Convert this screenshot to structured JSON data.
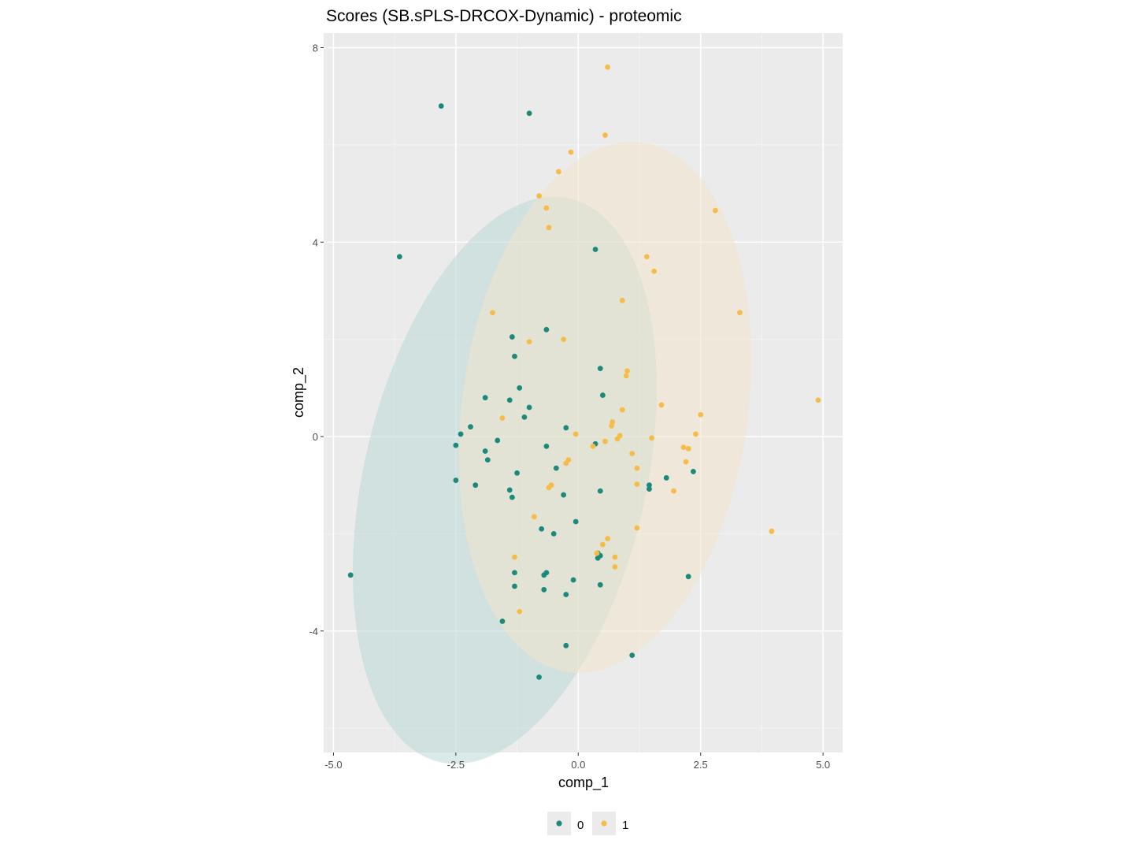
{
  "chart_data": {
    "type": "scatter",
    "title": "Scores (SB.sPLS-DRCOX-Dynamic) - proteomic",
    "xlabel": "comp_1",
    "ylabel": "comp_2",
    "xlim": [
      -5.2,
      5.4
    ],
    "ylim": [
      -6.5,
      8.3
    ],
    "x_ticks": [
      -5.0,
      -2.5,
      0.0,
      2.5,
      5.0
    ],
    "x_tick_labels": [
      "-5.0",
      "-2.5",
      "0.0",
      "2.5",
      "5.0"
    ],
    "y_ticks": [
      -4,
      0,
      4,
      8
    ],
    "y_tick_labels": [
      "-4",
      "0",
      "4",
      "8"
    ],
    "grid": true,
    "legend_position": "bottom",
    "series": [
      {
        "name": "0",
        "color": "#1b8a7a",
        "ellipse_color": "#b9d8d5",
        "ellipse": {
          "cx": -1.5,
          "cy": -0.9,
          "rx": 2.88,
          "ry": 5.95,
          "angle": 13
        },
        "points": [
          [
            -2.8,
            6.8
          ],
          [
            -1.0,
            6.65
          ],
          [
            -3.65,
            3.7
          ],
          [
            0.35,
            3.85
          ],
          [
            -0.65,
            2.2
          ],
          [
            -1.35,
            2.05
          ],
          [
            -1.3,
            1.65
          ],
          [
            0.45,
            1.4
          ],
          [
            -1.2,
            1.0
          ],
          [
            0.5,
            0.85
          ],
          [
            -1.9,
            0.8
          ],
          [
            -1.4,
            0.75
          ],
          [
            -1.0,
            0.6
          ],
          [
            -1.1,
            0.4
          ],
          [
            -2.2,
            0.2
          ],
          [
            -0.25,
            0.18
          ],
          [
            -2.4,
            0.05
          ],
          [
            -1.65,
            -0.08
          ],
          [
            -2.5,
            -0.18
          ],
          [
            0.35,
            -0.15
          ],
          [
            -0.65,
            -0.2
          ],
          [
            -1.9,
            -0.3
          ],
          [
            -1.85,
            -0.48
          ],
          [
            -0.45,
            -0.65
          ],
          [
            -1.25,
            -0.75
          ],
          [
            -2.5,
            -0.9
          ],
          [
            1.8,
            -0.85
          ],
          [
            2.35,
            -0.72
          ],
          [
            -2.1,
            -1.0
          ],
          [
            1.45,
            -1.0
          ],
          [
            1.45,
            -1.08
          ],
          [
            -1.4,
            -1.1
          ],
          [
            0.45,
            -1.12
          ],
          [
            -0.3,
            -1.2
          ],
          [
            -1.35,
            -1.25
          ],
          [
            -0.05,
            -1.75
          ],
          [
            -0.75,
            -1.9
          ],
          [
            -0.5,
            -2.0
          ],
          [
            0.4,
            -2.4
          ],
          [
            0.45,
            -2.45
          ],
          [
            0.4,
            -2.5
          ],
          [
            -1.3,
            -2.8
          ],
          [
            -0.65,
            -2.8
          ],
          [
            -0.7,
            -2.85
          ],
          [
            2.25,
            -2.88
          ],
          [
            -4.65,
            -2.85
          ],
          [
            -0.1,
            -2.95
          ],
          [
            -1.3,
            -3.08
          ],
          [
            -0.7,
            -3.15
          ],
          [
            0.45,
            -3.05
          ],
          [
            -0.25,
            -3.25
          ],
          [
            -1.55,
            -3.8
          ],
          [
            -0.25,
            -4.3
          ],
          [
            1.1,
            -4.5
          ],
          [
            -0.8,
            -4.95
          ]
        ]
      },
      {
        "name": "1",
        "color": "#f6bc4a",
        "ellipse_color": "#f3e6cc",
        "ellipse": {
          "cx": 0.55,
          "cy": 0.6,
          "rx": 2.92,
          "ry": 5.5,
          "angle": 8
        },
        "points": [
          [
            0.6,
            7.6
          ],
          [
            0.55,
            6.2
          ],
          [
            -0.15,
            5.85
          ],
          [
            -0.4,
            5.45
          ],
          [
            -0.8,
            4.95
          ],
          [
            -0.65,
            4.7
          ],
          [
            -0.6,
            4.3
          ],
          [
            2.8,
            4.65
          ],
          [
            1.4,
            3.7
          ],
          [
            1.55,
            3.4
          ],
          [
            0.9,
            2.8
          ],
          [
            -1.75,
            2.55
          ],
          [
            3.3,
            2.55
          ],
          [
            -0.3,
            2.0
          ],
          [
            -1.0,
            1.95
          ],
          [
            1.0,
            1.35
          ],
          [
            0.98,
            1.25
          ],
          [
            4.9,
            0.75
          ],
          [
            1.7,
            0.65
          ],
          [
            0.9,
            0.55
          ],
          [
            2.5,
            0.45
          ],
          [
            -1.55,
            0.38
          ],
          [
            0.7,
            0.3
          ],
          [
            0.68,
            0.22
          ],
          [
            0.85,
            0.02
          ],
          [
            2.4,
            0.05
          ],
          [
            -0.05,
            0.05
          ],
          [
            1.5,
            -0.03
          ],
          [
            0.8,
            -0.05
          ],
          [
            0.55,
            -0.1
          ],
          [
            0.3,
            -0.2
          ],
          [
            2.15,
            -0.22
          ],
          [
            2.25,
            -0.25
          ],
          [
            1.1,
            -0.35
          ],
          [
            -0.2,
            -0.48
          ],
          [
            -0.25,
            -0.55
          ],
          [
            2.2,
            -0.52
          ],
          [
            1.2,
            -0.65
          ],
          [
            -0.55,
            -1.0
          ],
          [
            1.2,
            -0.98
          ],
          [
            -0.6,
            -1.05
          ],
          [
            1.95,
            -1.12
          ],
          [
            -0.9,
            -1.65
          ],
          [
            1.2,
            -1.88
          ],
          [
            3.95,
            -1.95
          ],
          [
            0.6,
            -2.1
          ],
          [
            0.5,
            -2.22
          ],
          [
            0.38,
            -2.4
          ],
          [
            0.75,
            -2.48
          ],
          [
            -1.3,
            -2.48
          ],
          [
            0.75,
            -2.68
          ],
          [
            -1.2,
            -3.6
          ]
        ]
      }
    ]
  }
}
